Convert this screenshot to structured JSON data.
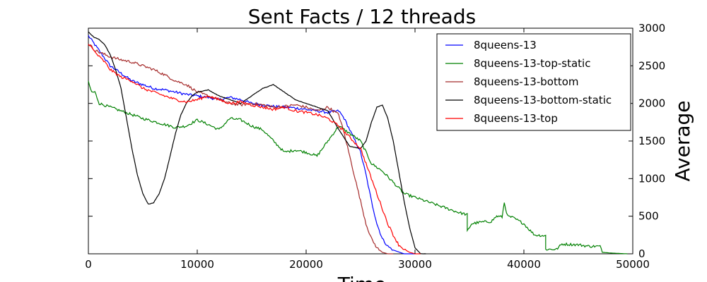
{
  "chart_data": {
    "type": "line",
    "title": "Sent Facts / 12 threads",
    "xlabel": "Time",
    "ylabel": "Average",
    "xlim": [
      0,
      50000
    ],
    "ylim": [
      0,
      3000
    ],
    "x_ticks": [
      0,
      10000,
      20000,
      30000,
      40000,
      50000
    ],
    "y_ticks": [
      0,
      500,
      1000,
      1500,
      2000,
      2500,
      3000
    ],
    "y_axis_side": "right",
    "grid": false,
    "legend_position": "top-right",
    "series": [
      {
        "name": "8queens-13",
        "color": "#0000ff",
        "points": [
          [
            0,
            2900
          ],
          [
            500,
            2800
          ],
          [
            1000,
            2700
          ],
          [
            1500,
            2600
          ],
          [
            2000,
            2500
          ],
          [
            2500,
            2450
          ],
          [
            3000,
            2400
          ],
          [
            4000,
            2300
          ],
          [
            5000,
            2250
          ],
          [
            6000,
            2200
          ],
          [
            7000,
            2180
          ],
          [
            8000,
            2150
          ],
          [
            9000,
            2120
          ],
          [
            10000,
            2100
          ],
          [
            11000,
            2080
          ],
          [
            12000,
            2050
          ],
          [
            13000,
            2080
          ],
          [
            14000,
            2050
          ],
          [
            15000,
            2000
          ],
          [
            16000,
            1980
          ],
          [
            17000,
            1960
          ],
          [
            18000,
            1950
          ],
          [
            19000,
            1940
          ],
          [
            20000,
            1920
          ],
          [
            21000,
            1900
          ],
          [
            22000,
            1880
          ],
          [
            23000,
            1900
          ],
          [
            23500,
            1800
          ],
          [
            24000,
            1650
          ],
          [
            24500,
            1500
          ],
          [
            25000,
            1350
          ],
          [
            25500,
            1050
          ],
          [
            26000,
            700
          ],
          [
            26500,
            400
          ],
          [
            27000,
            200
          ],
          [
            27500,
            100
          ],
          [
            28000,
            50
          ],
          [
            29000,
            0
          ],
          [
            30000,
            0
          ]
        ]
      },
      {
        "name": "8queens-13-top-static",
        "color": "#008000",
        "points": [
          [
            0,
            2280
          ],
          [
            300,
            2150
          ],
          [
            600,
            2150
          ],
          [
            1000,
            2000
          ],
          [
            2000,
            1950
          ],
          [
            3000,
            1900
          ],
          [
            4000,
            1850
          ],
          [
            5000,
            1800
          ],
          [
            6000,
            1760
          ],
          [
            7000,
            1720
          ],
          [
            8000,
            1680
          ],
          [
            9000,
            1700
          ],
          [
            10000,
            1780
          ],
          [
            11000,
            1720
          ],
          [
            12000,
            1650
          ],
          [
            13000,
            1800
          ],
          [
            14000,
            1780
          ],
          [
            15000,
            1700
          ],
          [
            16000,
            1650
          ],
          [
            17000,
            1500
          ],
          [
            18000,
            1350
          ],
          [
            19000,
            1380
          ],
          [
            20000,
            1350
          ],
          [
            21000,
            1300
          ],
          [
            22000,
            1500
          ],
          [
            23000,
            1700
          ],
          [
            24000,
            1600
          ],
          [
            25000,
            1500
          ],
          [
            26000,
            1200
          ],
          [
            27000,
            1100
          ],
          [
            28000,
            950
          ],
          [
            29000,
            800
          ],
          [
            30000,
            750
          ],
          [
            31000,
            700
          ],
          [
            32000,
            650
          ],
          [
            33000,
            600
          ],
          [
            34000,
            550
          ],
          [
            34800,
            520
          ],
          [
            34800,
            300
          ],
          [
            35200,
            400
          ],
          [
            36000,
            420
          ],
          [
            37000,
            430
          ],
          [
            37500,
            500
          ],
          [
            38000,
            490
          ],
          [
            38200,
            680
          ],
          [
            38500,
            500
          ],
          [
            39000,
            480
          ],
          [
            40000,
            400
          ],
          [
            40500,
            320
          ],
          [
            41000,
            250
          ],
          [
            42000,
            240
          ],
          [
            42000,
            60
          ],
          [
            43000,
            60
          ],
          [
            43500,
            130
          ],
          [
            45000,
            120
          ],
          [
            46000,
            100
          ],
          [
            47000,
            100
          ],
          [
            47200,
            20
          ],
          [
            48000,
            10
          ],
          [
            49500,
            0
          ]
        ]
      },
      {
        "name": "8queens-13-bottom",
        "color": "#a52a2a",
        "points": [
          [
            0,
            2800
          ],
          [
            500,
            2720
          ],
          [
            1000,
            2680
          ],
          [
            2000,
            2620
          ],
          [
            3000,
            2580
          ],
          [
            4000,
            2550
          ],
          [
            5000,
            2500
          ],
          [
            6000,
            2450
          ],
          [
            7000,
            2380
          ],
          [
            8000,
            2300
          ],
          [
            9000,
            2250
          ],
          [
            10000,
            2150
          ],
          [
            11000,
            2100
          ],
          [
            12000,
            2050
          ],
          [
            13000,
            2000
          ],
          [
            14000,
            1980
          ],
          [
            15000,
            2000
          ],
          [
            16000,
            1980
          ],
          [
            17000,
            1950
          ],
          [
            18000,
            1960
          ],
          [
            19000,
            1980
          ],
          [
            20000,
            1950
          ],
          [
            21000,
            1900
          ],
          [
            22000,
            1950
          ],
          [
            23000,
            1850
          ],
          [
            23500,
            1600
          ],
          [
            24000,
            1300
          ],
          [
            24500,
            1000
          ],
          [
            25000,
            700
          ],
          [
            25500,
            400
          ],
          [
            26000,
            200
          ],
          [
            26500,
            80
          ],
          [
            27000,
            20
          ],
          [
            27500,
            0
          ],
          [
            28000,
            0
          ]
        ]
      },
      {
        "name": "8queens-13-bottom-static",
        "color": "#000000",
        "points": [
          [
            0,
            2950
          ],
          [
            500,
            2880
          ],
          [
            1000,
            2850
          ],
          [
            1500,
            2780
          ],
          [
            2000,
            2650
          ],
          [
            2500,
            2450
          ],
          [
            3000,
            2200
          ],
          [
            3500,
            1800
          ],
          [
            4000,
            1400
          ],
          [
            4500,
            1050
          ],
          [
            5000,
            800
          ],
          [
            5500,
            660
          ],
          [
            6000,
            680
          ],
          [
            6500,
            800
          ],
          [
            7000,
            1000
          ],
          [
            7500,
            1300
          ],
          [
            8000,
            1600
          ],
          [
            8500,
            1850
          ],
          [
            9000,
            2000
          ],
          [
            9500,
            2100
          ],
          [
            10000,
            2150
          ],
          [
            11000,
            2180
          ],
          [
            12000,
            2100
          ],
          [
            13000,
            2050
          ],
          [
            14000,
            2000
          ],
          [
            15000,
            2100
          ],
          [
            16000,
            2200
          ],
          [
            17000,
            2250
          ],
          [
            18000,
            2150
          ],
          [
            19000,
            2050
          ],
          [
            20000,
            2000
          ],
          [
            21000,
            1950
          ],
          [
            22000,
            1900
          ],
          [
            23000,
            1650
          ],
          [
            24000,
            1430
          ],
          [
            25000,
            1400
          ],
          [
            25500,
            1500
          ],
          [
            26000,
            1750
          ],
          [
            26500,
            1950
          ],
          [
            27000,
            1980
          ],
          [
            27500,
            1800
          ],
          [
            28000,
            1500
          ],
          [
            28500,
            1100
          ],
          [
            29000,
            700
          ],
          [
            29500,
            350
          ],
          [
            30000,
            80
          ],
          [
            30500,
            0
          ],
          [
            31000,
            0
          ]
        ]
      },
      {
        "name": "8queens-13-top",
        "color": "#ff0000",
        "points": [
          [
            0,
            2800
          ],
          [
            500,
            2700
          ],
          [
            1000,
            2620
          ],
          [
            1500,
            2550
          ],
          [
            2000,
            2450
          ],
          [
            3000,
            2350
          ],
          [
            4000,
            2300
          ],
          [
            5000,
            2200
          ],
          [
            6000,
            2150
          ],
          [
            7000,
            2100
          ],
          [
            8000,
            2050
          ],
          [
            9000,
            2020
          ],
          [
            10000,
            2050
          ],
          [
            11000,
            2100
          ],
          [
            12000,
            2050
          ],
          [
            13000,
            2000
          ],
          [
            14000,
            2020
          ],
          [
            15000,
            1980
          ],
          [
            16000,
            1950
          ],
          [
            17000,
            1920
          ],
          [
            18000,
            1950
          ],
          [
            19000,
            1900
          ],
          [
            20000,
            1880
          ],
          [
            21000,
            1850
          ],
          [
            22000,
            1800
          ],
          [
            23000,
            1700
          ],
          [
            24000,
            1550
          ],
          [
            25000,
            1400
          ],
          [
            25500,
            1200
          ],
          [
            26000,
            1000
          ],
          [
            26500,
            800
          ],
          [
            27000,
            600
          ],
          [
            27500,
            400
          ],
          [
            28000,
            250
          ],
          [
            28500,
            120
          ],
          [
            29000,
            60
          ],
          [
            29500,
            20
          ],
          [
            30000,
            0
          ],
          [
            30500,
            0
          ]
        ]
      }
    ]
  }
}
